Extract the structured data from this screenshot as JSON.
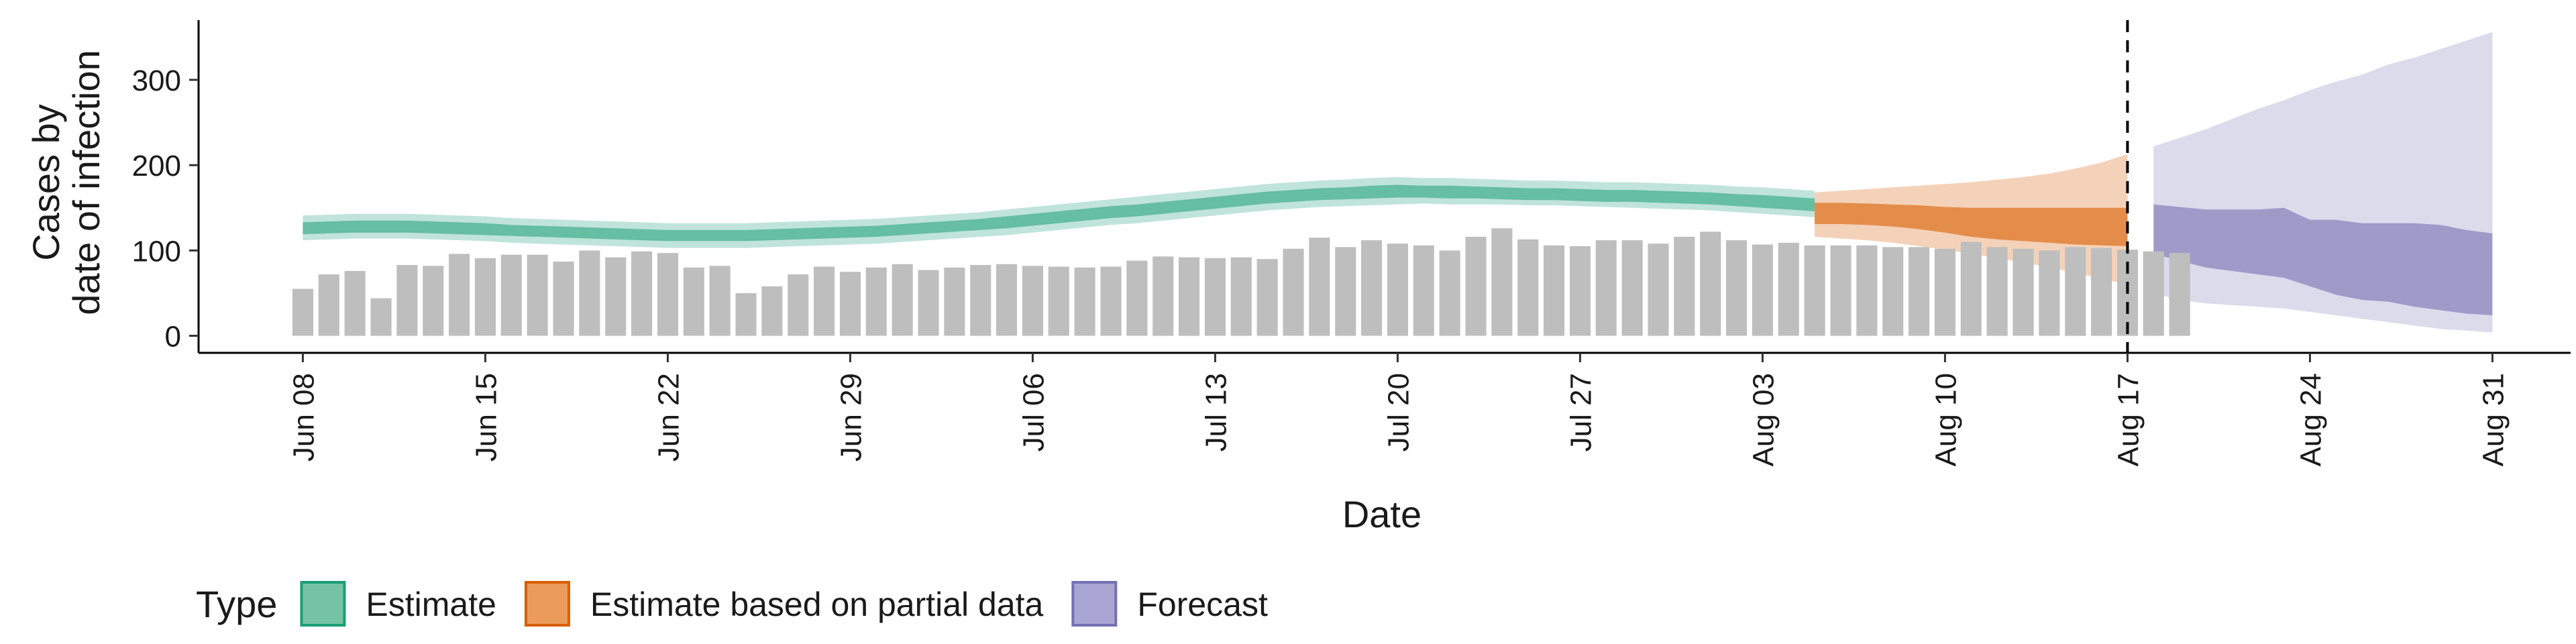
{
  "chart_data": {
    "type": "bar",
    "xlabel": "Date",
    "ylabel_lines": [
      "Cases by",
      "date of infection"
    ],
    "ylim": [
      -20,
      370
    ],
    "xlim": [
      "2020-06-04",
      "2020-09-03"
    ],
    "y_ticks": [
      0,
      100,
      200,
      300
    ],
    "x_ticks": [
      {
        "date": "2020-06-08",
        "label": "Jun 08"
      },
      {
        "date": "2020-06-15",
        "label": "Jun 15"
      },
      {
        "date": "2020-06-22",
        "label": "Jun 22"
      },
      {
        "date": "2020-06-29",
        "label": "Jun 29"
      },
      {
        "date": "2020-07-06",
        "label": "Jul 06"
      },
      {
        "date": "2020-07-13",
        "label": "Jul 13"
      },
      {
        "date": "2020-07-20",
        "label": "Jul 20"
      },
      {
        "date": "2020-07-27",
        "label": "Jul 27"
      },
      {
        "date": "2020-08-03",
        "label": "Aug 03"
      },
      {
        "date": "2020-08-10",
        "label": "Aug 10"
      },
      {
        "date": "2020-08-17",
        "label": "Aug 17"
      },
      {
        "date": "2020-08-24",
        "label": "Aug 24"
      },
      {
        "date": "2020-08-31",
        "label": "Aug 31"
      }
    ],
    "grid": false,
    "legend": {
      "placement": "bottom-left",
      "title": "Type",
      "entries": [
        {
          "label": "Estimate",
          "fill": "#76c2a4",
          "stroke": "#1b9e77"
        },
        {
          "label": "Estimate based on partial data",
          "fill": "#eb9b5c",
          "stroke": "#d95f02"
        },
        {
          "label": "Forecast",
          "fill": "#a9a6d3",
          "stroke": "#7570b3"
        }
      ]
    },
    "vline": {
      "date": "2020-08-17",
      "style": "dashed"
    },
    "bars": {
      "start_date": "2020-06-08",
      "color": "#bebebe",
      "values": [
        55,
        72,
        76,
        44,
        83,
        82,
        96,
        91,
        95,
        95,
        87,
        100,
        92,
        99,
        97,
        80,
        82,
        50,
        58,
        72,
        81,
        75,
        80,
        84,
        77,
        80,
        83,
        84,
        82,
        81,
        80,
        81,
        88,
        93,
        92,
        91,
        92,
        90,
        102,
        115,
        104,
        112,
        108,
        106,
        100,
        116,
        126,
        113,
        106,
        105,
        112,
        112,
        108,
        116,
        122,
        112,
        107,
        109,
        106,
        106,
        106,
        104,
        104,
        102,
        110,
        104,
        102,
        100,
        104,
        103,
        101,
        99,
        97
      ]
    },
    "series": [
      {
        "name": "Estimate",
        "start_date": "2020-06-08",
        "outer_color": "#1b9e77",
        "outer_opacity": 0.28,
        "inner_color": "#1b9e77",
        "inner_opacity": 0.55,
        "outer_lower": [
          112,
          113,
          114,
          114,
          114,
          113,
          112,
          111,
          109,
          108,
          107,
          106,
          105,
          104,
          103,
          103,
          103,
          103,
          104,
          105,
          106,
          107,
          108,
          110,
          112,
          114,
          116,
          118,
          121,
          124,
          127,
          130,
          132,
          135,
          138,
          141,
          144,
          147,
          149,
          151,
          152,
          153,
          154,
          155,
          154,
          154,
          154,
          153,
          153,
          152,
          151,
          150,
          149,
          148,
          147,
          145,
          143,
          141,
          139
        ],
        "outer_upper": [
          141,
          142,
          143,
          143,
          143,
          142,
          141,
          140,
          138,
          137,
          136,
          135,
          134,
          133,
          132,
          132,
          132,
          132,
          133,
          134,
          135,
          136,
          137,
          139,
          141,
          143,
          145,
          148,
          151,
          154,
          157,
          160,
          163,
          166,
          169,
          172,
          175,
          178,
          180,
          182,
          183,
          185,
          186,
          185,
          185,
          184,
          183,
          182,
          182,
          181,
          180,
          180,
          179,
          178,
          177,
          175,
          174,
          172,
          170
        ],
        "inner_lower": [
          119,
          120,
          121,
          121,
          121,
          120,
          119,
          118,
          117,
          116,
          115,
          114,
          113,
          112,
          111,
          111,
          111,
          111,
          112,
          113,
          114,
          115,
          116,
          118,
          120,
          122,
          124,
          126,
          129,
          132,
          135,
          138,
          140,
          143,
          146,
          149,
          152,
          155,
          157,
          159,
          160,
          161,
          162,
          162,
          161,
          161,
          160,
          159,
          159,
          158,
          157,
          157,
          156,
          155,
          154,
          152,
          150,
          148,
          146
        ],
        "inner_upper": [
          133,
          134,
          135,
          135,
          135,
          134,
          133,
          132,
          130,
          129,
          128,
          127,
          126,
          125,
          124,
          124,
          124,
          124,
          125,
          126,
          127,
          128,
          129,
          131,
          133,
          135,
          137,
          140,
          143,
          146,
          149,
          152,
          154,
          157,
          160,
          163,
          166,
          169,
          171,
          173,
          174,
          176,
          177,
          176,
          176,
          175,
          174,
          173,
          173,
          172,
          171,
          171,
          170,
          169,
          168,
          166,
          165,
          163,
          161
        ]
      },
      {
        "name": "Estimate based on partial data",
        "start_date": "2020-08-05",
        "outer_color": "#d95f02",
        "outer_opacity": 0.28,
        "inner_color": "#d95f02",
        "inner_opacity": 0.6,
        "outer_lower": [
          116,
          114,
          112,
          109,
          105,
          101,
          96,
          91,
          86,
          80,
          74,
          67,
          60
        ],
        "outer_upper": [
          168,
          170,
          172,
          174,
          176,
          178,
          180,
          183,
          186,
          190,
          196,
          203,
          213
        ],
        "inner_lower": [
          131,
          131,
          130,
          128,
          125,
          121,
          116,
          113,
          111,
          109,
          107,
          106,
          105
        ],
        "inner_upper": [
          156,
          156,
          155,
          154,
          153,
          151,
          150,
          150,
          150,
          150,
          150,
          150,
          150
        ]
      },
      {
        "name": "Forecast",
        "start_date": "2020-08-18",
        "outer_color": "#7570b3",
        "outer_opacity": 0.25,
        "inner_color": "#7570b3",
        "inner_opacity": 0.6,
        "outer_lower": [
          50,
          42,
          38,
          36,
          34,
          32,
          28,
          24,
          20,
          16,
          12,
          8,
          6,
          4
        ],
        "outer_upper": [
          222,
          232,
          242,
          254,
          266,
          276,
          288,
          298,
          306,
          318,
          326,
          336,
          346,
          356
        ],
        "inner_lower": [
          96,
          88,
          80,
          76,
          72,
          68,
          58,
          48,
          42,
          40,
          34,
          30,
          26,
          24
        ],
        "inner_upper": [
          154,
          151,
          148,
          148,
          148,
          150,
          136,
          136,
          132,
          132,
          132,
          130,
          124,
          120
        ]
      }
    ]
  }
}
